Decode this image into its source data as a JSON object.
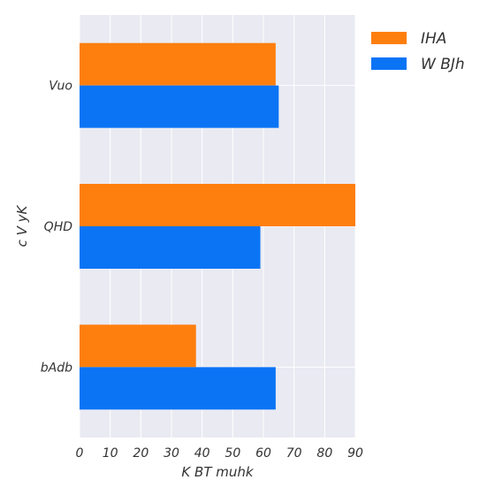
{
  "chart_data": {
    "type": "bar",
    "orientation": "horizontal",
    "categories": [
      "Vuo",
      "QHD",
      "bAdb"
    ],
    "series": [
      {
        "name": "IHA",
        "color": "#ff7f0e",
        "values": [
          64,
          90,
          38
        ]
      },
      {
        "name": "W BJh",
        "color": "#0a74f5",
        "values": [
          65,
          59,
          64
        ]
      }
    ],
    "xlabel": "K BT muhk",
    "ylabel": "c V yK",
    "xlim": [
      0,
      90
    ],
    "xticks": [
      0,
      10,
      20,
      30,
      40,
      50,
      60,
      70,
      80,
      90
    ],
    "grid": true,
    "legend_position": "right",
    "background_color": "#e9eaf2"
  }
}
